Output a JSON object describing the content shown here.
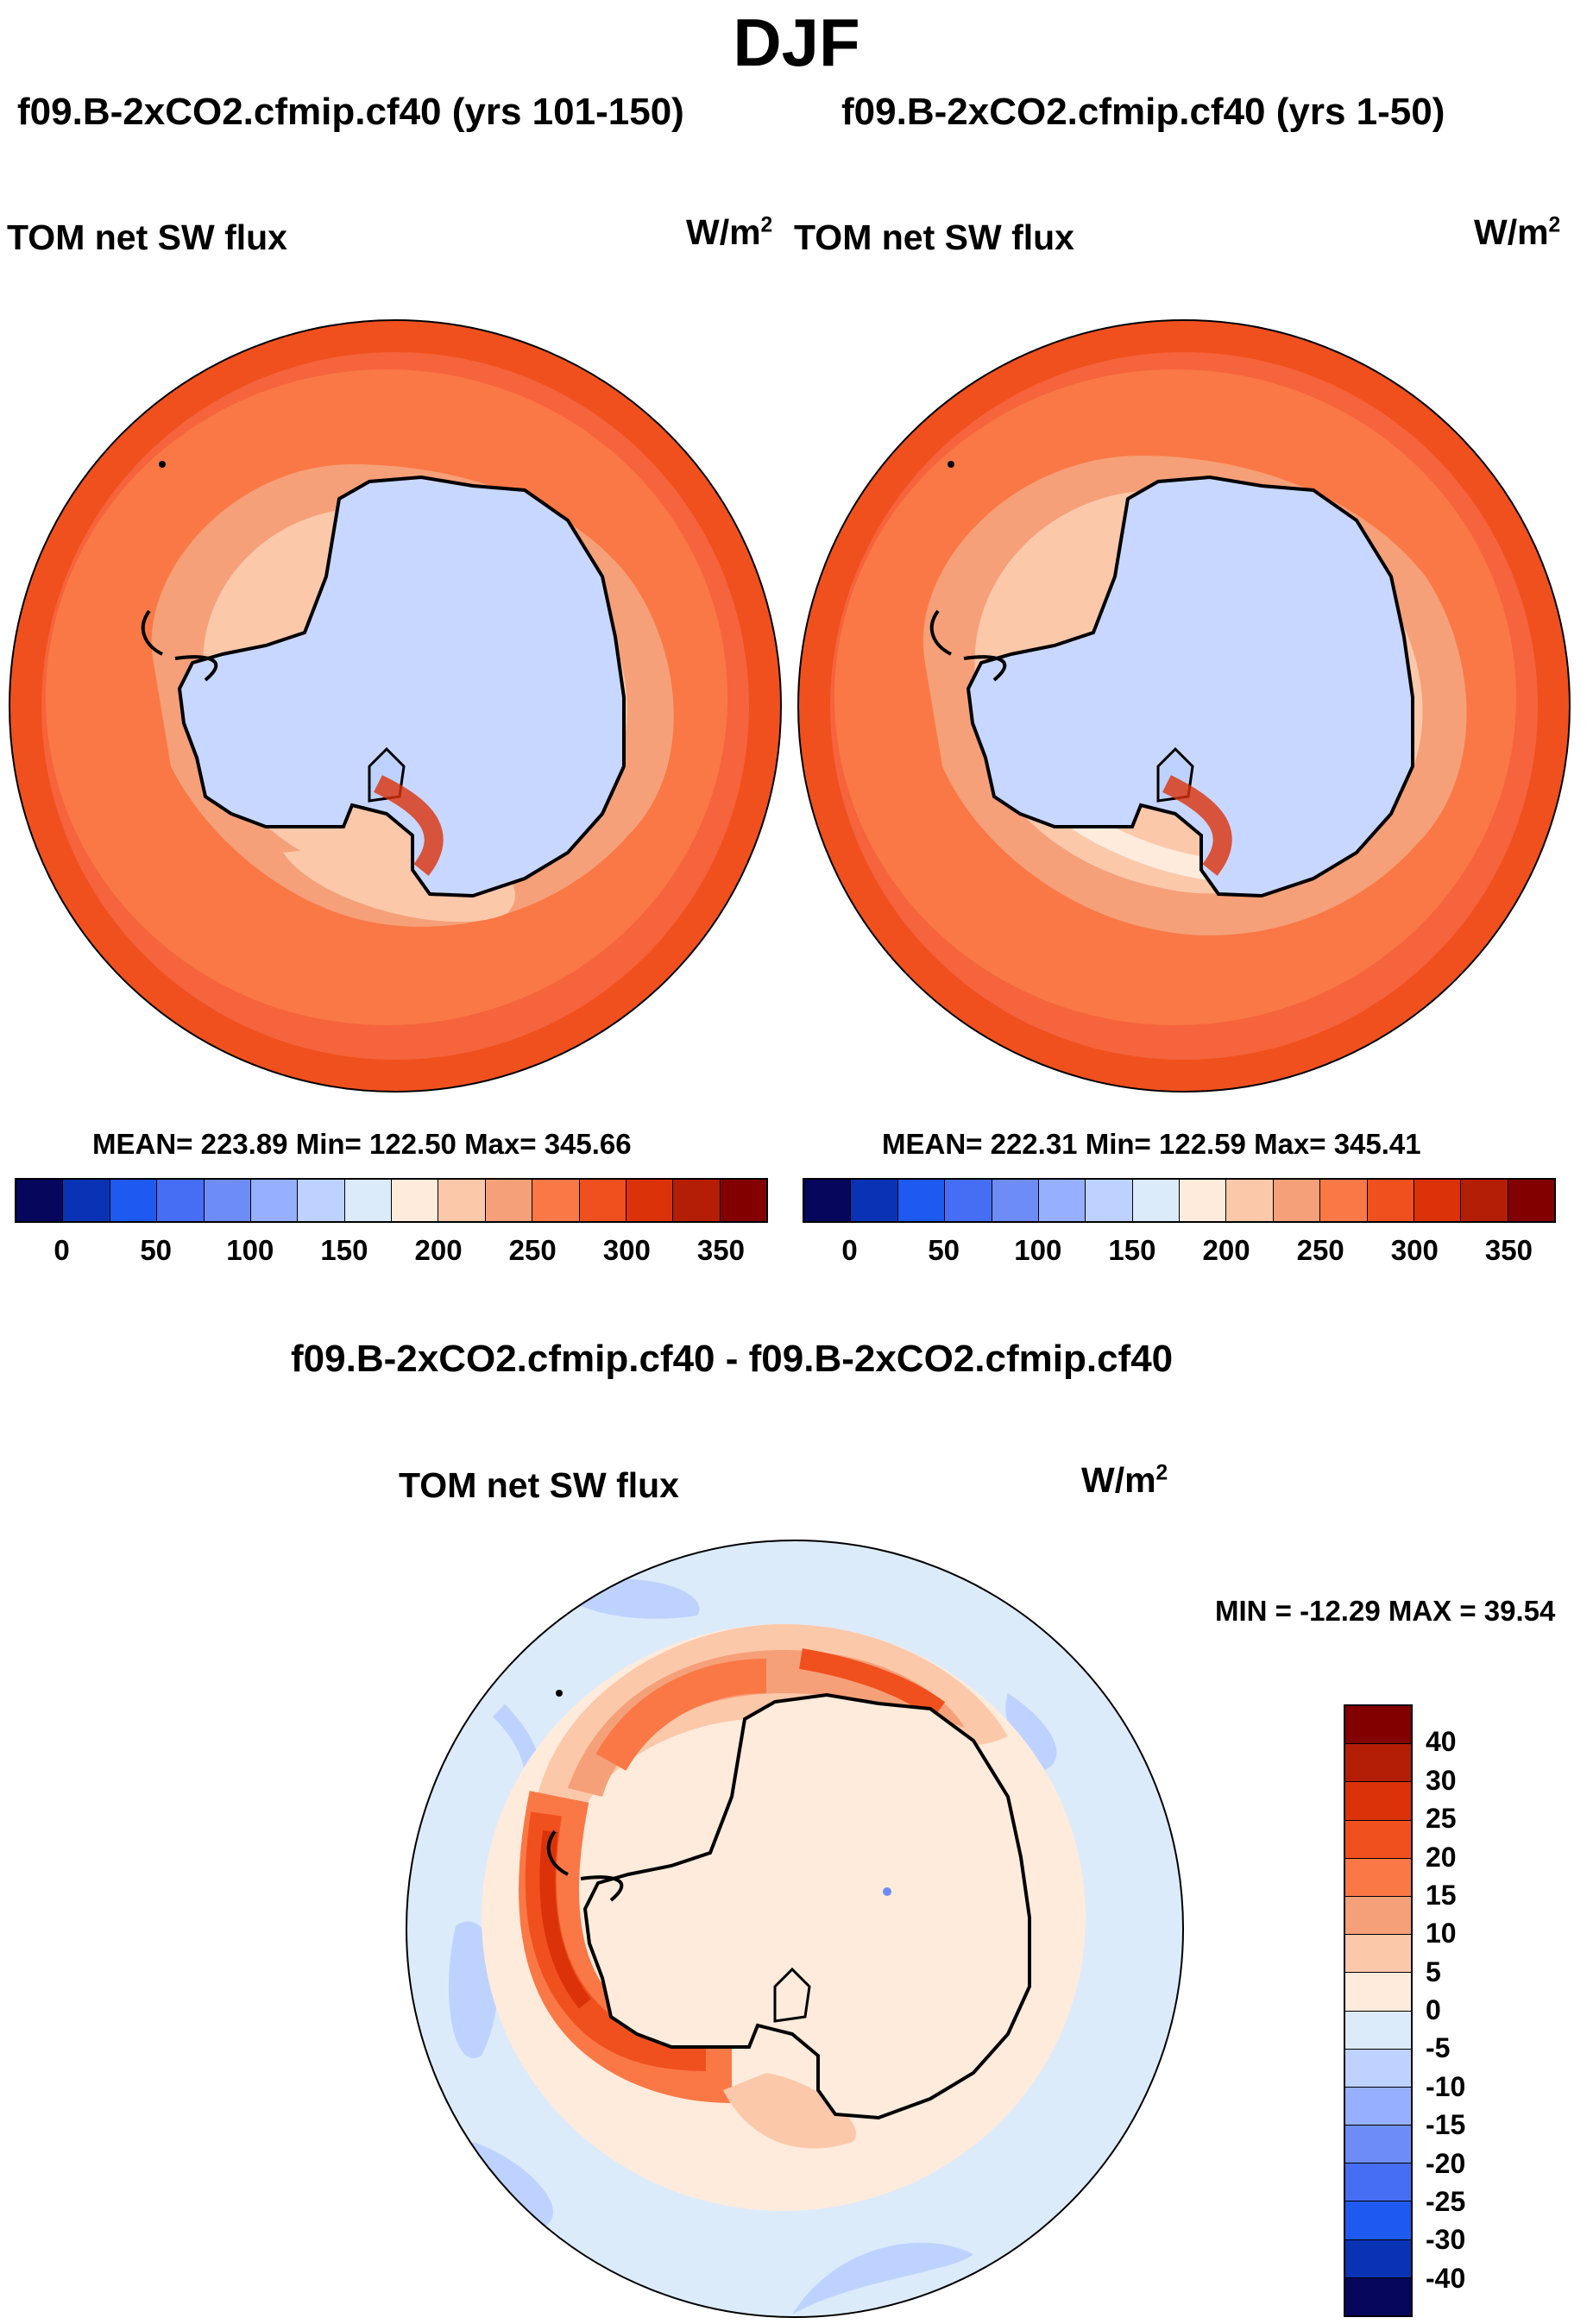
{
  "title": "DJF",
  "panels": [
    {
      "case": "f09.B-2xCO2.cfmip.cf40 (yrs 101-150)",
      "variable": "TOM net SW flux",
      "units_base": "W/m",
      "units_exp": "2",
      "stats": "MEAN= 223.89  Min= 122.50  Max= 345.66",
      "map_description": "South polar stereographic map of TOM net SW flux; Antarctica ~140-150 W/m2 (light blue), Southern Ocean 200-300 W/m2 (orange), outer ring 250-300 W/m2"
    },
    {
      "case": "f09.B-2xCO2.cfmip.cf40 (yrs 1-50)",
      "variable": "TOM net SW flux",
      "units_base": "W/m",
      "units_exp": "2",
      "stats": "MEAN= 222.31  Min= 122.59  Max= 345.41",
      "map_description": "South polar stereographic map of TOM net SW flux; pattern similar to first panel"
    }
  ],
  "shared_colorbar": {
    "colors": [
      "#06065c",
      "#0a32b4",
      "#1e5af0",
      "#466ef5",
      "#6e8cf5",
      "#96afff",
      "#bed2ff",
      "#dcebfa",
      "#ffebdc",
      "#fcc8aa",
      "#f5a078",
      "#fa7846",
      "#f0501e",
      "#dc320a",
      "#b41e06",
      "#820000"
    ],
    "ticks": [
      "0",
      "50",
      "100",
      "150",
      "200",
      "250",
      "300",
      "350"
    ]
  },
  "difference": {
    "case": "f09.B-2xCO2.cfmip.cf40 - f09.B-2xCO2.cfmip.cf40",
    "variable": "TOM net SW flux",
    "units_base": "W/m",
    "units_exp": "2",
    "stats": "MIN = -12.29 MAX =  39.54",
    "colors": [
      "#820000",
      "#b41e06",
      "#dc320a",
      "#f0501e",
      "#fa7846",
      "#f5a078",
      "#fcc8aa",
      "#ffebdc",
      "#dcebfa",
      "#bed2ff",
      "#96afff",
      "#6e8cf5",
      "#466ef5",
      "#1e5af0",
      "#0a32b4",
      "#06065c"
    ],
    "ticks": [
      "40",
      "30",
      "25",
      "20",
      "15",
      "10",
      "5",
      "0",
      "-5",
      "-10",
      "-15",
      "-20",
      "-25",
      "-30",
      "-40"
    ]
  },
  "chart_data": [
    {
      "type": "heatmap",
      "title": "f09.B-2xCO2.cfmip.cf40 (yrs 101-150)",
      "variable": "TOM net SW flux",
      "units": "W/m2",
      "projection": "south polar stereographic",
      "mean": 223.89,
      "min": 122.5,
      "max": 345.66,
      "contour_levels": [
        0,
        50,
        100,
        150,
        200,
        250,
        300,
        350
      ]
    },
    {
      "type": "heatmap",
      "title": "f09.B-2xCO2.cfmip.cf40 (yrs 1-50)",
      "variable": "TOM net SW flux",
      "units": "W/m2",
      "projection": "south polar stereographic",
      "mean": 222.31,
      "min": 122.59,
      "max": 345.41,
      "contour_levels": [
        0,
        50,
        100,
        150,
        200,
        250,
        300,
        350
      ]
    },
    {
      "type": "heatmap",
      "title": "f09.B-2xCO2.cfmip.cf40 - f09.B-2xCO2.cfmip.cf40",
      "variable": "TOM net SW flux",
      "units": "W/m2",
      "projection": "south polar stereographic",
      "min": -12.29,
      "max": 39.54,
      "contour_levels": [
        -40,
        -30,
        -25,
        -20,
        -15,
        -10,
        -5,
        0,
        5,
        10,
        15,
        20,
        25,
        30,
        40
      ]
    }
  ]
}
